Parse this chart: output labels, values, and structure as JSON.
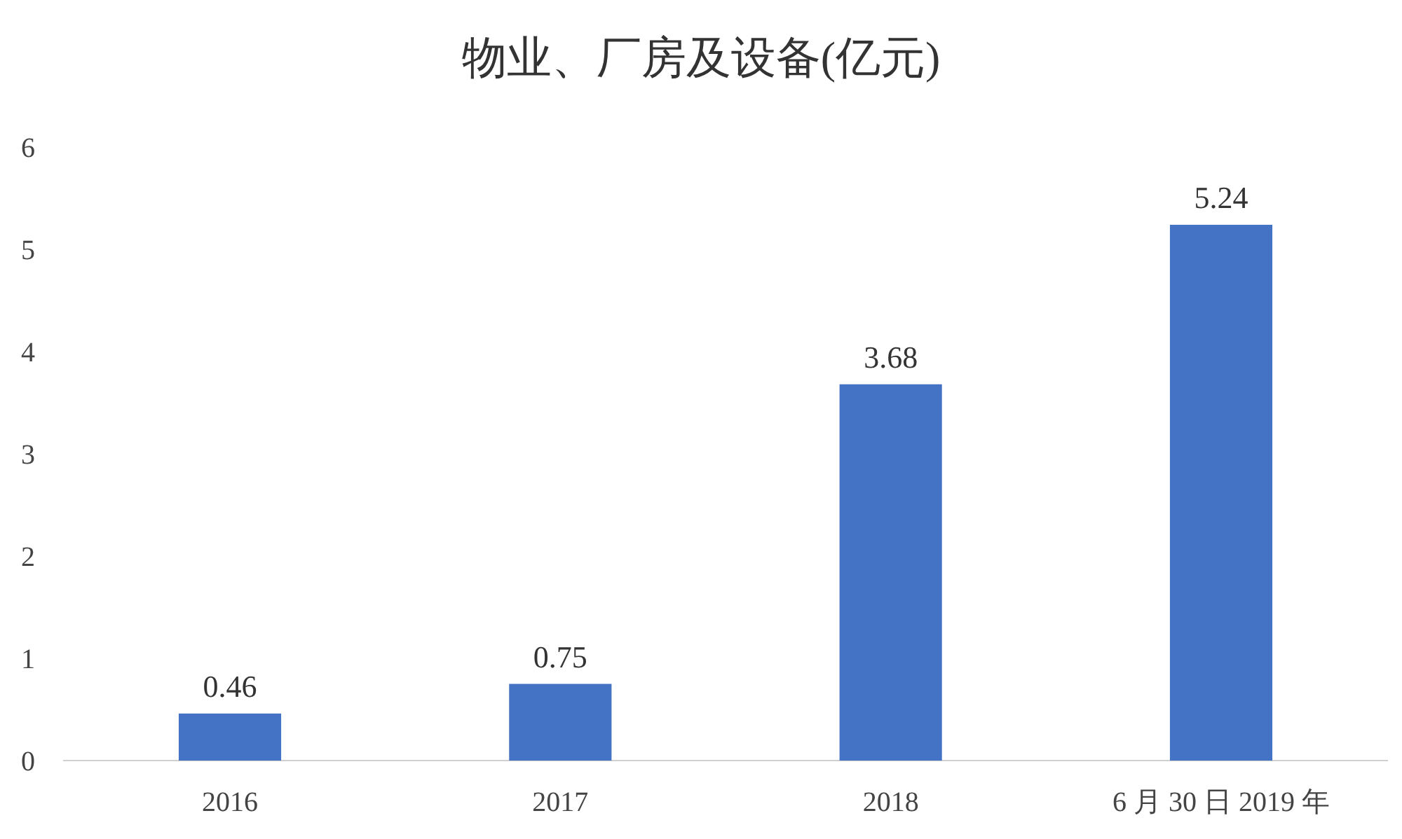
{
  "chart_data": {
    "type": "bar",
    "title": "物业、厂房及设备(亿元)",
    "categories": [
      "2016",
      "2017",
      "2018",
      "6 月 30 日 2019 年"
    ],
    "values": [
      0.46,
      0.75,
      3.68,
      5.24
    ],
    "color": "#4472c4",
    "ylim": [
      0,
      6
    ],
    "yticks": [
      0,
      1,
      2,
      3,
      4,
      5,
      6
    ],
    "grid": false,
    "data_labels": true
  }
}
